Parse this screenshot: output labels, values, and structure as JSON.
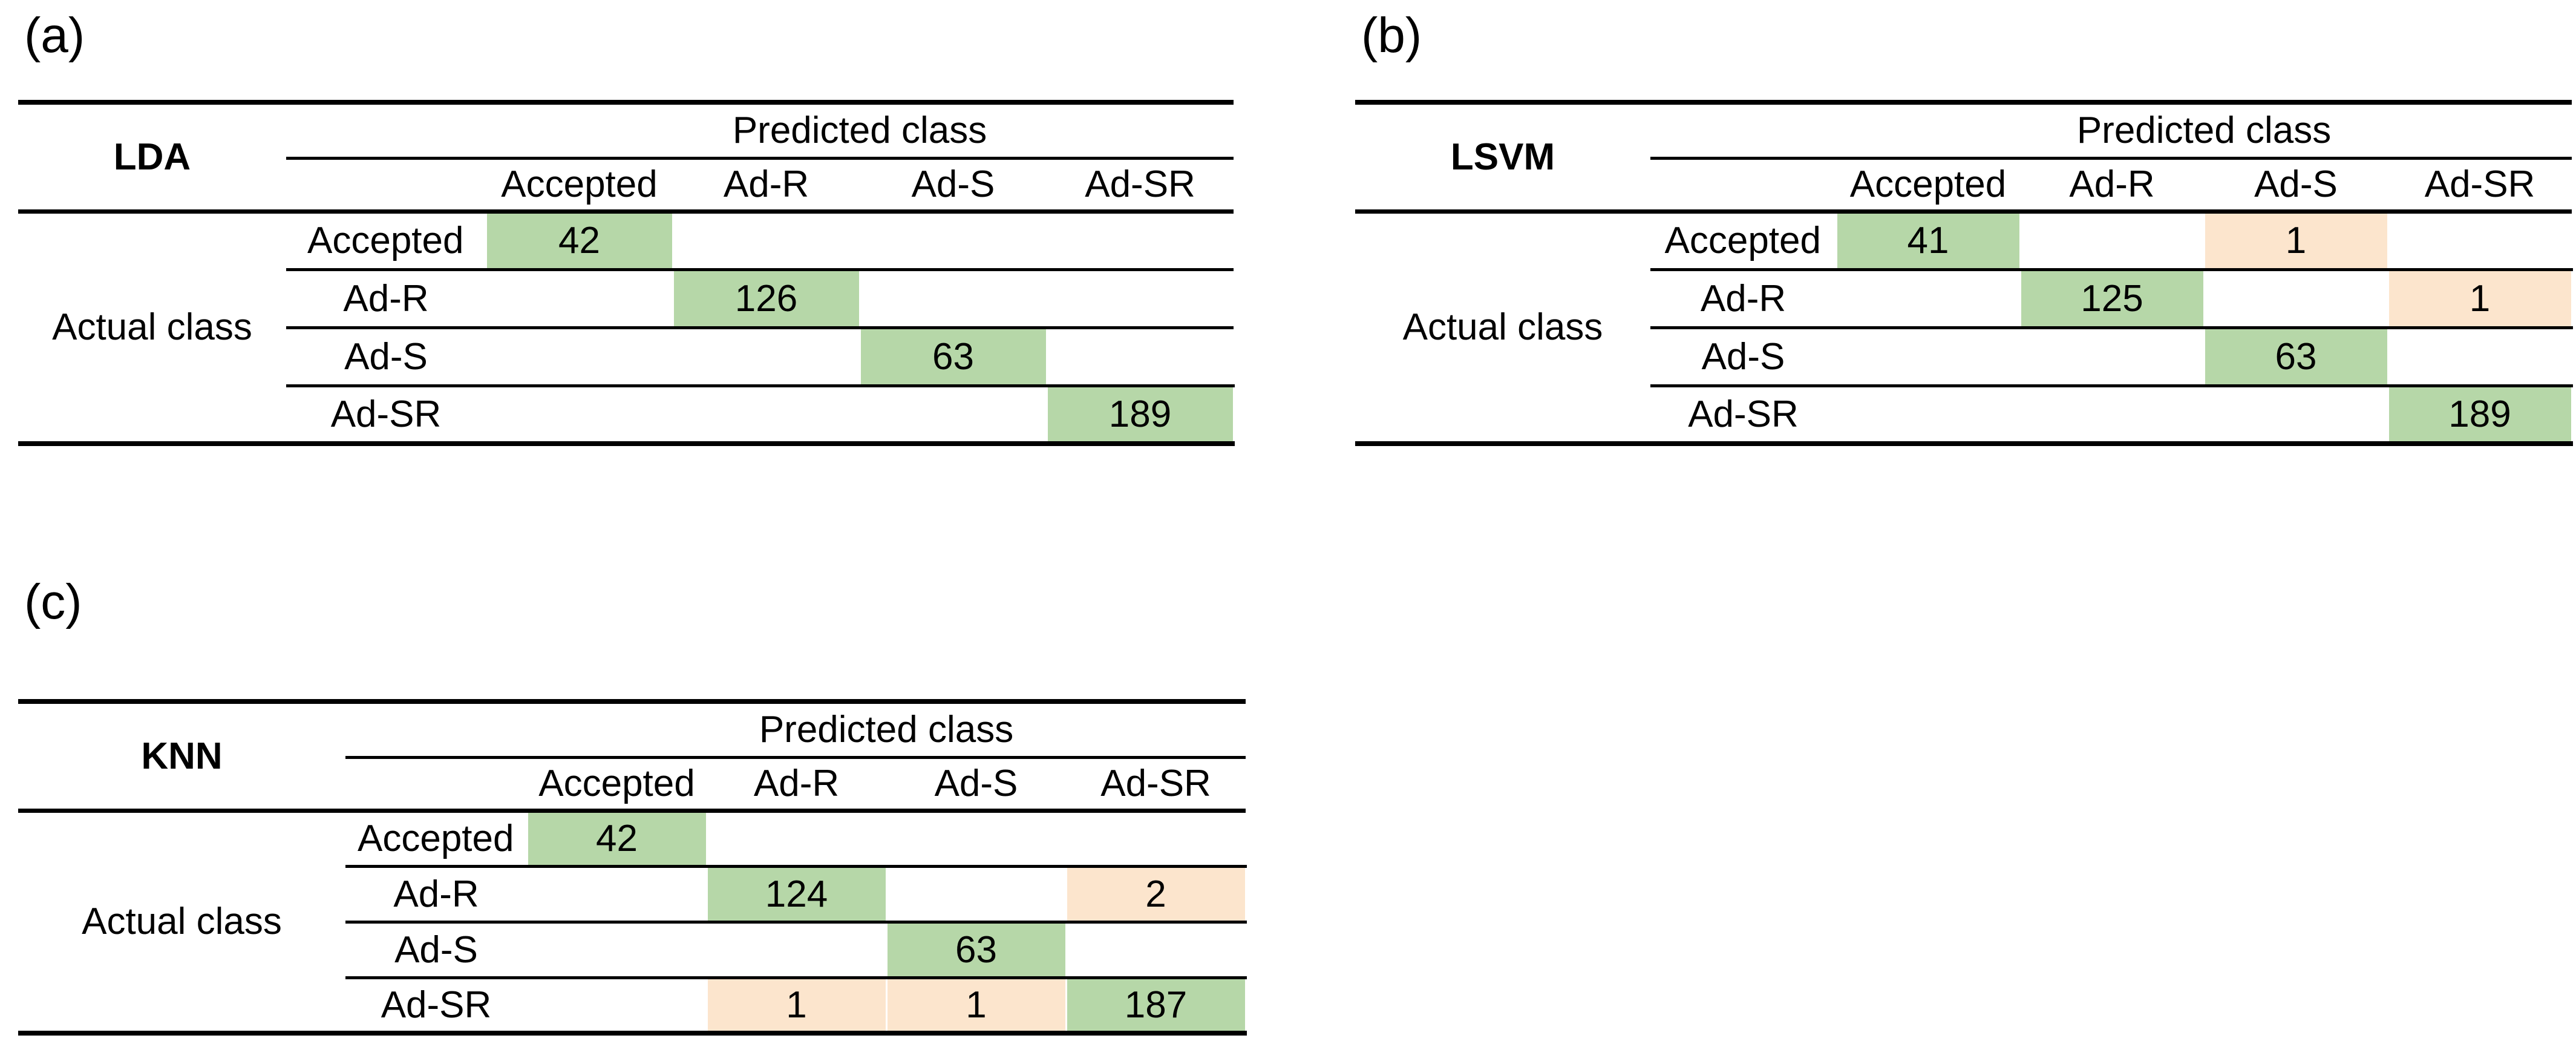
{
  "colors": {
    "correct_cell_bg": "#b6d7a8",
    "error_cell_bg": "#fce5cd",
    "rule_color": "#000000",
    "text_color": "#000000",
    "page_bg": "#ffffff"
  },
  "panels": [
    {
      "label": "(a)",
      "model": "LDA",
      "predicted": "Predicted class",
      "actual": "Actual class",
      "cols": [
        "Accepted",
        "Ad-R",
        "Ad-S",
        "Ad-SR"
      ],
      "rows": [
        {
          "label": "Accepted",
          "cells": [
            {
              "v": "42",
              "t": "g"
            },
            {
              "v": "",
              "t": ""
            },
            {
              "v": "",
              "t": ""
            },
            {
              "v": "",
              "t": ""
            }
          ]
        },
        {
          "label": "Ad-R",
          "cells": [
            {
              "v": "",
              "t": ""
            },
            {
              "v": "126",
              "t": "g"
            },
            {
              "v": "",
              "t": ""
            },
            {
              "v": "",
              "t": ""
            }
          ]
        },
        {
          "label": "Ad-S",
          "cells": [
            {
              "v": "",
              "t": ""
            },
            {
              "v": "",
              "t": ""
            },
            {
              "v": "63",
              "t": "g"
            },
            {
              "v": "",
              "t": ""
            }
          ]
        },
        {
          "label": "Ad-SR",
          "cells": [
            {
              "v": "",
              "t": ""
            },
            {
              "v": "",
              "t": ""
            },
            {
              "v": "",
              "t": ""
            },
            {
              "v": "189",
              "t": "g"
            }
          ]
        }
      ]
    },
    {
      "label": "(b)",
      "model": "LSVM",
      "predicted": "Predicted class",
      "actual": "Actual class",
      "cols": [
        "Accepted",
        "Ad-R",
        "Ad-S",
        "Ad-SR"
      ],
      "rows": [
        {
          "label": "Accepted",
          "cells": [
            {
              "v": "41",
              "t": "g"
            },
            {
              "v": "",
              "t": ""
            },
            {
              "v": "1",
              "t": "o"
            },
            {
              "v": "",
              "t": ""
            }
          ]
        },
        {
          "label": "Ad-R",
          "cells": [
            {
              "v": "",
              "t": ""
            },
            {
              "v": "125",
              "t": "g"
            },
            {
              "v": "",
              "t": ""
            },
            {
              "v": "1",
              "t": "o"
            }
          ]
        },
        {
          "label": "Ad-S",
          "cells": [
            {
              "v": "",
              "t": ""
            },
            {
              "v": "",
              "t": ""
            },
            {
              "v": "63",
              "t": "g"
            },
            {
              "v": "",
              "t": ""
            }
          ]
        },
        {
          "label": "Ad-SR",
          "cells": [
            {
              "v": "",
              "t": ""
            },
            {
              "v": "",
              "t": ""
            },
            {
              "v": "",
              "t": ""
            },
            {
              "v": "189",
              "t": "g"
            }
          ]
        }
      ]
    },
    {
      "label": "(c)",
      "model": "KNN",
      "predicted": "Predicted class",
      "actual": "Actual class",
      "cols": [
        "Accepted",
        "Ad-R",
        "Ad-S",
        "Ad-SR"
      ],
      "rows": [
        {
          "label": "Accepted",
          "cells": [
            {
              "v": "42",
              "t": "g"
            },
            {
              "v": "",
              "t": ""
            },
            {
              "v": "",
              "t": ""
            },
            {
              "v": "",
              "t": ""
            }
          ]
        },
        {
          "label": "Ad-R",
          "cells": [
            {
              "v": "",
              "t": ""
            },
            {
              "v": "124",
              "t": "g"
            },
            {
              "v": "",
              "t": ""
            },
            {
              "v": "2",
              "t": "o"
            }
          ]
        },
        {
          "label": "Ad-S",
          "cells": [
            {
              "v": "",
              "t": ""
            },
            {
              "v": "",
              "t": ""
            },
            {
              "v": "63",
              "t": "g"
            },
            {
              "v": "",
              "t": ""
            }
          ]
        },
        {
          "label": "Ad-SR",
          "cells": [
            {
              "v": "",
              "t": ""
            },
            {
              "v": "1",
              "t": "o"
            },
            {
              "v": "1",
              "t": "o"
            },
            {
              "v": "187",
              "t": "g"
            }
          ]
        }
      ]
    }
  ]
}
